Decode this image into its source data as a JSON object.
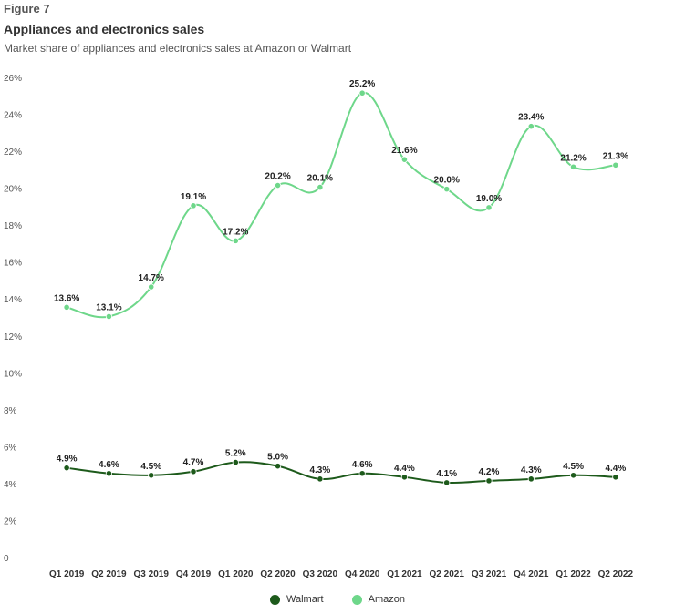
{
  "figure_label": "Figure 7",
  "chart_data": {
    "type": "line",
    "title": "Appliances and electronics sales",
    "subtitle": "Market share of appliances and electronics sales at Amazon or Walmart",
    "categories": [
      "Q1 2019",
      "Q2 2019",
      "Q3 2019",
      "Q4 2019",
      "Q1 2020",
      "Q2 2020",
      "Q3 2020",
      "Q4 2020",
      "Q1 2021",
      "Q2 2021",
      "Q3 2021",
      "Q4 2021",
      "Q1 2022",
      "Q2 2022"
    ],
    "yticks": [
      "0",
      "2%",
      "4%",
      "6%",
      "8%",
      "10%",
      "12%",
      "14%",
      "16%",
      "18%",
      "20%",
      "22%",
      "24%",
      "26%"
    ],
    "ylim": [
      0,
      26
    ],
    "xlabel": "",
    "ylabel": "",
    "legend_position": "bottom-center",
    "series": [
      {
        "name": "Walmart",
        "color": "#1d5a1b",
        "values": [
          4.9,
          4.6,
          4.5,
          4.7,
          5.2,
          5.0,
          4.3,
          4.6,
          4.4,
          4.1,
          4.2,
          4.3,
          4.5,
          4.4
        ],
        "labels": [
          "4.9%",
          "4.6%",
          "4.5%",
          "4.7%",
          "5.2%",
          "5.0%",
          "4.3%",
          "4.6%",
          "4.4%",
          "4.1%",
          "4.2%",
          "4.3%",
          "4.5%",
          "4.4%"
        ]
      },
      {
        "name": "Amazon",
        "color": "#6ed78a",
        "values": [
          13.6,
          13.1,
          14.7,
          19.1,
          17.2,
          20.2,
          20.1,
          25.2,
          21.6,
          20.0,
          19.0,
          23.4,
          21.2,
          21.3
        ],
        "labels": [
          "13.6%",
          "13.1%",
          "14.7%",
          "19.1%",
          "17.2%",
          "20.2%",
          "20.1%",
          "25.2%",
          "21.6%",
          "20.0%",
          "19.0%",
          "23.4%",
          "21.2%",
          "21.3%"
        ]
      }
    ]
  }
}
